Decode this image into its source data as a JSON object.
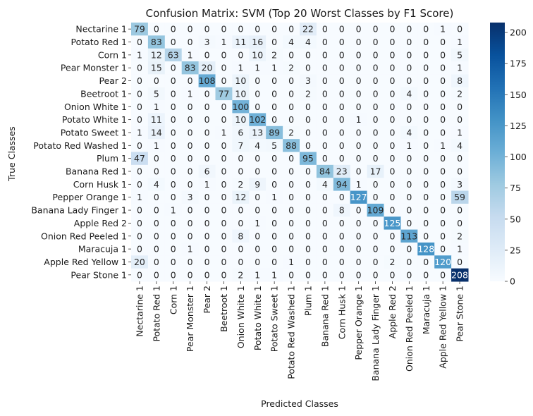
{
  "chart_data": {
    "type": "heatmap",
    "title": "Confusion Matrix: SVM (Top 20 Worst Classes by F1 Score)",
    "xlabel": "Predicted Classes",
    "ylabel": "True Classes",
    "colormap": "Blues",
    "value_range": [
      0,
      208
    ],
    "colorbar_ticks": [
      0,
      25,
      50,
      75,
      100,
      125,
      150,
      175,
      200
    ],
    "labels": [
      "Nectarine 1",
      "Potato Red 1",
      "Corn 1",
      "Pear Monster 1",
      "Pear 2",
      "Beetroot 1",
      "Onion White 1",
      "Potato White 1",
      "Potato Sweet 1",
      "Potato Red Washed 1",
      "Plum 1",
      "Banana Red 1",
      "Corn Husk 1",
      "Pepper Orange 1",
      "Banana Lady Finger 1",
      "Apple Red 2",
      "Onion Red Peeled 1",
      "Maracuja 1",
      "Apple Red Yellow 1",
      "Pear Stone 1"
    ],
    "matrix": [
      [
        79,
        0,
        0,
        0,
        0,
        0,
        0,
        0,
        0,
        0,
        22,
        0,
        0,
        0,
        0,
        0,
        0,
        0,
        1,
        0
      ],
      [
        0,
        83,
        0,
        0,
        3,
        1,
        11,
        16,
        0,
        4,
        4,
        0,
        0,
        0,
        0,
        0,
        0,
        0,
        0,
        1
      ],
      [
        1,
        12,
        63,
        1,
        0,
        0,
        0,
        10,
        2,
        0,
        0,
        0,
        0,
        0,
        0,
        0,
        0,
        0,
        0,
        5
      ],
      [
        0,
        15,
        0,
        83,
        20,
        0,
        1,
        1,
        1,
        2,
        0,
        0,
        0,
        0,
        0,
        0,
        0,
        0,
        0,
        1
      ],
      [
        0,
        0,
        0,
        0,
        108,
        0,
        10,
        0,
        0,
        0,
        3,
        0,
        0,
        0,
        0,
        0,
        0,
        0,
        0,
        8
      ],
      [
        0,
        5,
        0,
        1,
        0,
        77,
        10,
        0,
        0,
        0,
        2,
        0,
        0,
        0,
        0,
        0,
        4,
        0,
        0,
        2
      ],
      [
        0,
        1,
        0,
        0,
        0,
        0,
        100,
        0,
        0,
        0,
        0,
        0,
        0,
        0,
        0,
        0,
        0,
        0,
        0,
        0
      ],
      [
        0,
        11,
        0,
        0,
        0,
        0,
        10,
        102,
        0,
        0,
        0,
        0,
        0,
        1,
        0,
        0,
        0,
        0,
        0,
        0
      ],
      [
        1,
        14,
        0,
        0,
        0,
        1,
        6,
        13,
        89,
        2,
        0,
        0,
        0,
        0,
        0,
        0,
        4,
        0,
        0,
        1
      ],
      [
        0,
        1,
        0,
        0,
        0,
        0,
        7,
        4,
        5,
        88,
        0,
        0,
        0,
        0,
        0,
        0,
        1,
        0,
        1,
        4
      ],
      [
        47,
        0,
        0,
        0,
        0,
        0,
        0,
        0,
        0,
        0,
        95,
        0,
        0,
        0,
        0,
        0,
        0,
        0,
        0,
        0
      ],
      [
        0,
        0,
        0,
        0,
        6,
        0,
        0,
        0,
        0,
        0,
        0,
        84,
        23,
        0,
        17,
        0,
        0,
        0,
        0,
        0
      ],
      [
        0,
        4,
        0,
        0,
        1,
        0,
        2,
        9,
        0,
        0,
        0,
        4,
        94,
        1,
        0,
        0,
        0,
        0,
        0,
        3
      ],
      [
        1,
        0,
        0,
        3,
        0,
        0,
        12,
        0,
        1,
        0,
        0,
        0,
        0,
        127,
        0,
        0,
        0,
        0,
        0,
        59
      ],
      [
        0,
        0,
        1,
        0,
        0,
        0,
        0,
        0,
        0,
        0,
        0,
        0,
        8,
        0,
        109,
        0,
        0,
        0,
        0,
        0
      ],
      [
        0,
        0,
        0,
        0,
        0,
        0,
        0,
        1,
        0,
        0,
        0,
        0,
        0,
        0,
        0,
        125,
        0,
        0,
        0,
        0
      ],
      [
        0,
        0,
        0,
        0,
        0,
        0,
        8,
        0,
        0,
        0,
        0,
        0,
        0,
        0,
        0,
        0,
        113,
        0,
        0,
        2
      ],
      [
        0,
        0,
        0,
        1,
        0,
        0,
        0,
        0,
        0,
        0,
        0,
        0,
        0,
        0,
        0,
        0,
        0,
        128,
        0,
        1
      ],
      [
        20,
        0,
        0,
        0,
        0,
        0,
        0,
        0,
        0,
        1,
        0,
        0,
        0,
        0,
        0,
        2,
        0,
        0,
        120,
        0
      ],
      [
        0,
        0,
        0,
        0,
        0,
        0,
        2,
        1,
        1,
        0,
        0,
        0,
        0,
        0,
        0,
        0,
        0,
        0,
        0,
        208
      ]
    ]
  }
}
